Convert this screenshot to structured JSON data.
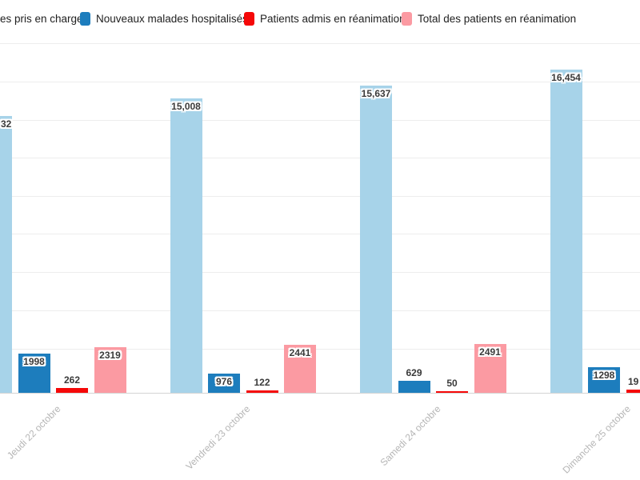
{
  "legend": {
    "items": [
      {
        "label": "es pris en charge",
        "truncated_at_left": true,
        "color": null
      },
      {
        "label": "Nouveaux malades hospitalisés",
        "color": "#1d7dbd"
      },
      {
        "label": "Patients admis en réanimation",
        "color": "#f50808"
      },
      {
        "label": "Total des patients en réanimation",
        "color": "#fb9aa2"
      }
    ]
  },
  "chart_data": {
    "type": "bar",
    "title": "",
    "xlabel": "",
    "ylabel": "",
    "categories": [
      "Jeudi 22 octobre",
      "Vendredi 23 octobre",
      "Samedi 24 octobre",
      "Dimanche 25 octobre"
    ],
    "series": [
      {
        "key": "malades-pris-en-charge",
        "name": "es pris en charge",
        "color": "#a7d3e9",
        "values": [
          null,
          15008,
          15637,
          16454
        ],
        "labels": [
          "32",
          "15,008",
          "15,637",
          "16,454"
        ],
        "px": [
          346,
          null,
          null,
          null
        ]
      },
      {
        "key": "nouveaux-malades-hospitalises",
        "name": "Nouveaux malades hospitalisés",
        "color": "#1d7dbd",
        "values": [
          1998,
          976,
          629,
          1298
        ],
        "labels": [
          "1998",
          "976",
          "629",
          "1298"
        ],
        "px": [
          null,
          null,
          null,
          null
        ]
      },
      {
        "key": "patients-admis-en-reanimation",
        "name": "Patients admis en réanimation",
        "color": "#f50808",
        "values": [
          262,
          122,
          50,
          null
        ],
        "labels": [
          "262",
          "122",
          "50",
          "19"
        ],
        "px": [
          null,
          null,
          null,
          4
        ]
      },
      {
        "key": "total-patients-en-reanimation",
        "name": "Total des patients en réanimation",
        "color": "#fb9aa2",
        "values": [
          2319,
          2441,
          2491,
          null
        ],
        "labels": [
          "2319",
          "2441",
          "2491",
          ""
        ],
        "px": [
          null,
          null,
          null,
          null
        ]
      }
    ],
    "ylim": [
      0,
      17800
    ],
    "y_axis_labels_visible": false,
    "grid": "horizontal",
    "legend_position": "top",
    "value_labels": true,
    "clipped": {
      "left_first_group": true,
      "right_last_group": true
    }
  },
  "colors": {
    "background": "#ffffff",
    "gridline": "#ededed",
    "axis_line": "#d4d4d4",
    "bar_label_text": "#3a3a3a",
    "x_label_text": "#b5b5b5",
    "legend_text": "#1f1f1f"
  }
}
